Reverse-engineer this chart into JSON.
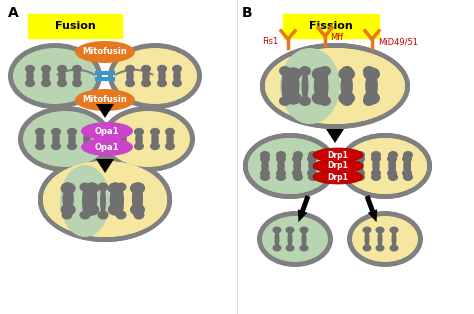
{
  "title_fusion": "Fusion",
  "title_fission": "Fission",
  "label_A": "A",
  "label_B": "B",
  "mitofusin": "Mitofusin",
  "opa1_top": "Opa1",
  "opa1_bot": "Opa1",
  "drp1": "Drp1",
  "fis1": "Fis1",
  "mff": "Mff",
  "mid4951": "MiD49/51",
  "color_green_mito": "#b8d4b0",
  "color_yellow_mito": "#f5e6a0",
  "color_gray_border": "#808080",
  "color_orange": "#e87820",
  "color_magenta": "#cc44cc",
  "color_red": "#cc0000",
  "color_blue": "#3399cc",
  "color_yellow_bg": "#ffff00",
  "color_black": "#000000",
  "color_white": "#ffffff",
  "color_dark_gray": "#555555",
  "color_cristae": "#707070"
}
